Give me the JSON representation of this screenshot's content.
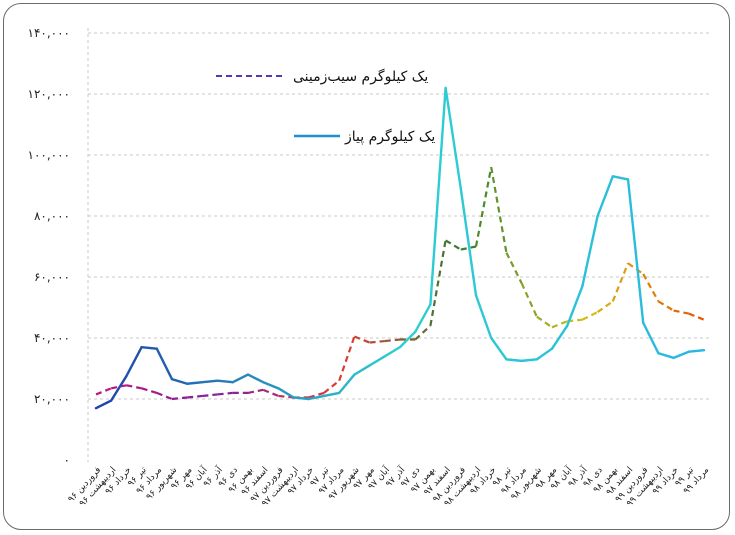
{
  "chart_data": {
    "type": "line",
    "title": "",
    "xlabel": "",
    "ylabel": "",
    "ylim": [
      0,
      140000
    ],
    "yticks": [
      0,
      20000,
      40000,
      60000,
      80000,
      100000,
      120000,
      140000
    ],
    "ytick_labels": [
      "۰",
      "۲۰,۰۰۰",
      "۴۰,۰۰۰",
      "۶۰,۰۰۰",
      "۸۰,۰۰۰",
      "۱۰۰,۰۰۰",
      "۱۲۰,۰۰۰",
      "۱۴۰,۰۰۰"
    ],
    "grid": "horizontal-dashed",
    "legend_position": "top-center",
    "categories": [
      "فروردین ۹۶",
      "اردیبهشت ۹۶",
      "خرداد ۹۶",
      "تیر ۹۶",
      "مرداد ۹۶",
      "شهریور ۹۶",
      "مهر ۹۶",
      "آبان ۹۶",
      "آذر ۹۶",
      "دی ۹۶",
      "بهمن ۹۶",
      "اسفند ۹۶",
      "فروردین ۹۷",
      "اردیبهشت ۹۷",
      "خرداد ۹۷",
      "تیر ۹۷",
      "مرداد ۹۷",
      "شهریور ۹۷",
      "مهر ۹۷",
      "آبان ۹۷",
      "آذر ۹۷",
      "دی ۹۷",
      "بهمن ۹۷",
      "اسفند ۹۷",
      "فروردین ۹۸",
      "اردیبهشت ۹۸",
      "خرداد ۹۸",
      "تیر ۹۸",
      "مرداد ۹۸",
      "شهریور ۹۸",
      "مهر ۹۸",
      "آبان ۹۸",
      "آذر ۹۸",
      "دی ۹۸",
      "بهمن ۹۸",
      "اسفند ۹۸",
      "فروردین ۹۹",
      "اردیبهشت ۹۹",
      "خرداد ۹۹",
      "تیر ۹۹",
      "مرداد ۹۹"
    ],
    "series": [
      {
        "name": "یک کیلوگرم سیب‌زمینی",
        "style": "dashed",
        "colors": [
          "#c2187a",
          "#7b1fa2",
          "#e53935",
          "#2e7d32",
          "#d4c21a",
          "#e65100"
        ],
        "values": [
          21500,
          23500,
          24500,
          23500,
          22000,
          20000,
          20500,
          21000,
          21500,
          22000,
          22000,
          23000,
          21000,
          20500,
          20500,
          22000,
          26000,
          40500,
          38500,
          39000,
          39500,
          39500,
          44000,
          72000,
          69000,
          70000,
          96000,
          68000,
          58000,
          47000,
          43500,
          45500,
          46000,
          48500,
          52000,
          64500,
          61000,
          52000,
          49000,
          48000,
          46000
        ]
      },
      {
        "name": "یک کیلوگرم پیاز",
        "style": "solid",
        "colors": [
          "#1e3fa8",
          "#2ecfd0",
          "#29b6e0"
        ],
        "values": [
          17000,
          19500,
          27500,
          37000,
          36500,
          26500,
          25000,
          25500,
          26000,
          25500,
          28000,
          25500,
          23500,
          20500,
          20000,
          21000,
          22000,
          28000,
          31000,
          34000,
          37000,
          42000,
          51000,
          122000,
          89000,
          54000,
          40000,
          33000,
          32500,
          33000,
          36500,
          44000,
          57000,
          80000,
          93000,
          92000,
          45000,
          35000,
          33500,
          35500,
          36000
        ]
      }
    ]
  }
}
